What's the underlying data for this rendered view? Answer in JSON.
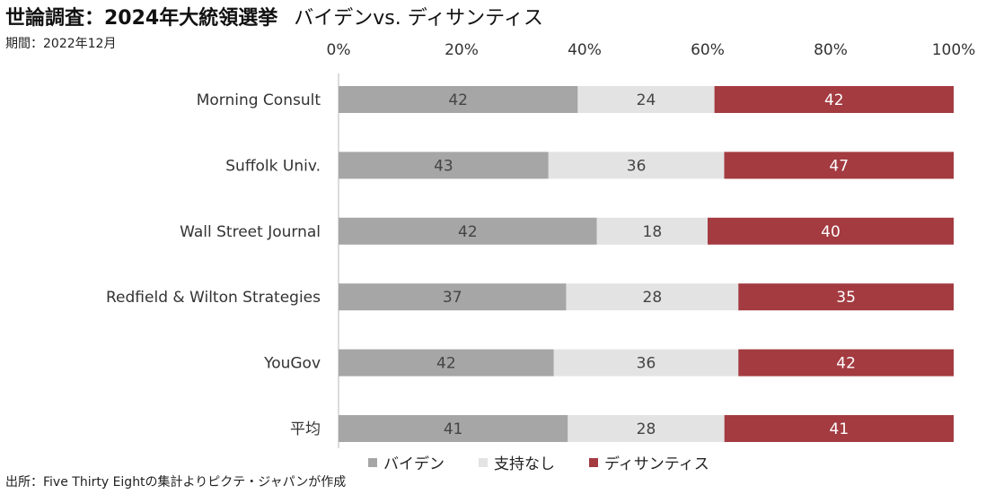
{
  "title": "世論調査：2024年大統領選挙",
  "subtitle": "バイデンvs. ディサンティス",
  "period": "期間：2022年12月",
  "source": "出所：Five Thirty Eightの集計よりピクテ・ジャパンが作成",
  "colors": {
    "biden": "#a6a6a6",
    "none": "#e3e3e3",
    "desantis": "#a33b41",
    "axis": "#d0d0d0"
  },
  "chart_data": {
    "type": "bar",
    "orientation": "horizontal",
    "stacked": true,
    "normalized": "percent",
    "categories": [
      "Morning Consult",
      "Suffolk Univ.",
      "Wall Street Journal",
      "Redfield & Wilton Strategies",
      "YouGov",
      "平均"
    ],
    "series": [
      {
        "name": "バイデン",
        "values": [
          42,
          43,
          42,
          37,
          42,
          41
        ]
      },
      {
        "name": "支持なし",
        "values": [
          24,
          36,
          18,
          28,
          36,
          28
        ]
      },
      {
        "name": "ディサンティス",
        "values": [
          42,
          47,
          40,
          35,
          42,
          41
        ]
      }
    ],
    "xticks": [
      "0%",
      "20%",
      "40%",
      "60%",
      "80%",
      "100%"
    ],
    "xlim": [
      0,
      100
    ],
    "xaxis_position": "top",
    "legend_position": "bottom",
    "grid": false
  }
}
